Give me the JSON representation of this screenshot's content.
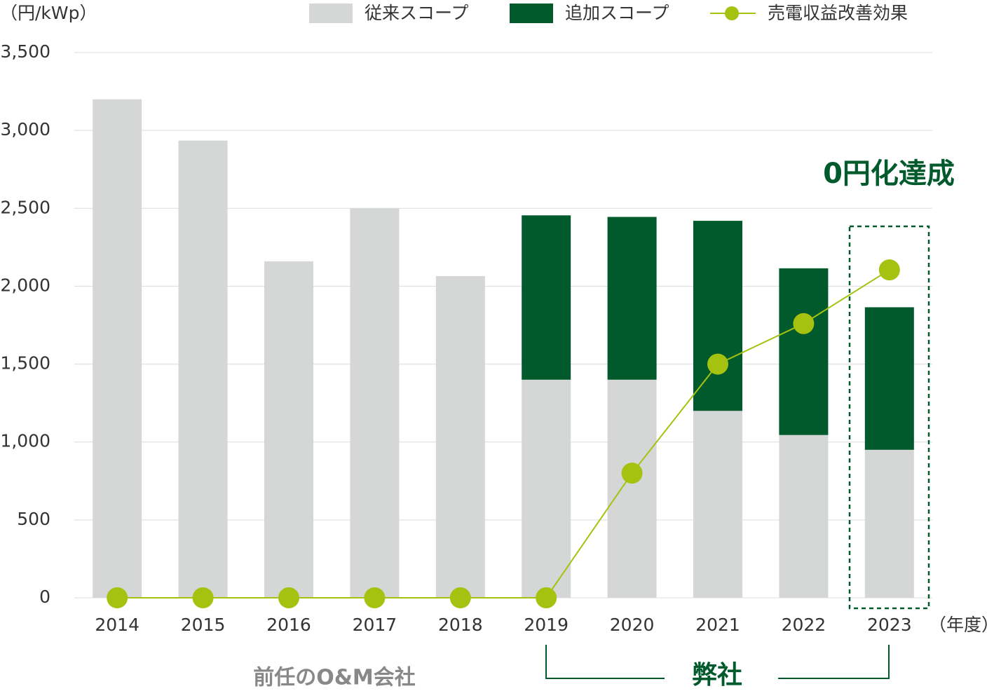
{
  "chart_data": {
    "type": "bar",
    "stacked": true,
    "y_label": "（円/kWp）",
    "x_label": "（年度）",
    "categories": [
      "2014",
      "2015",
      "2016",
      "2017",
      "2018",
      "2019",
      "2020",
      "2021",
      "2022",
      "2023"
    ],
    "series": [
      {
        "name": "従来スコープ",
        "type": "bar",
        "color": "#d5d6d6",
        "values": [
          3200,
          2935,
          2160,
          2500,
          2065,
          1400,
          1400,
          1200,
          1045,
          950
        ]
      },
      {
        "name": "追加スコープ",
        "type": "bar",
        "color": "#005a2b",
        "values": [
          null,
          null,
          null,
          null,
          null,
          1055,
          1045,
          1220,
          1070,
          915
        ]
      },
      {
        "name": "売電収益改善効果",
        "type": "line",
        "color": "#a4c20f",
        "values": [
          0,
          0,
          0,
          0,
          0,
          0,
          800,
          1500,
          1760,
          2105
        ]
      }
    ],
    "ylim": [
      0,
      3500
    ],
    "yticks": [
      0,
      500,
      {
        "value": 1000,
        "label": "1,000"
      },
      {
        "value": 1500,
        "label": "1,500"
      },
      {
        "value": 2000,
        "label": "2,000"
      },
      {
        "value": 2500,
        "label": "2,500"
      },
      {
        "value": 3000,
        "label": "3,000"
      },
      {
        "value": 3500,
        "label": "3,500"
      }
    ],
    "grid": true,
    "annotations": {
      "highlight": "0円化達成",
      "previous": "前任のO&M会社",
      "ours": "弊社"
    }
  }
}
